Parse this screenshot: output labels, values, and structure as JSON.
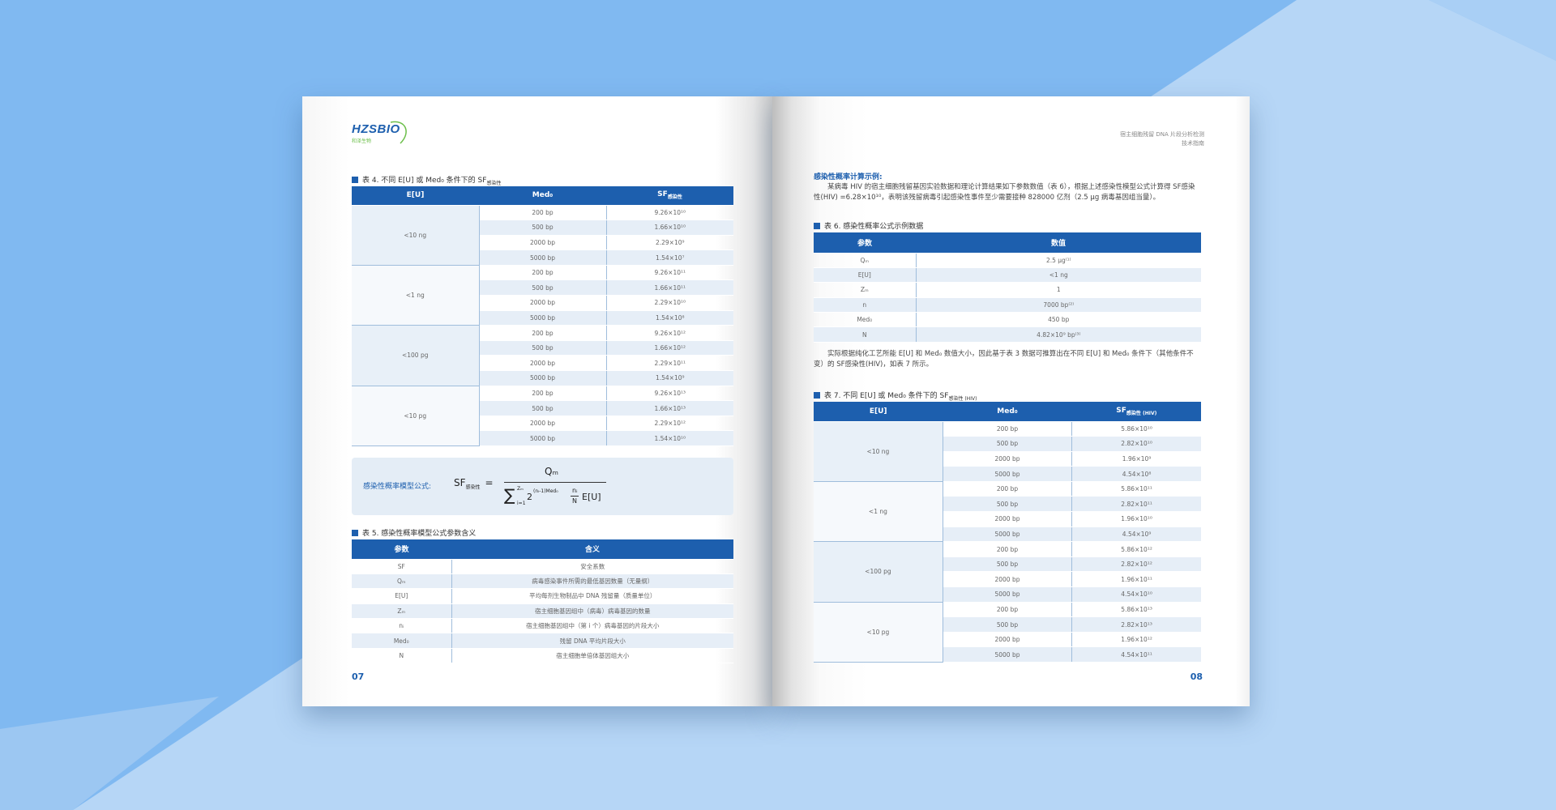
{
  "left_page": {
    "logo": {
      "text": "HZSBIO",
      "subtext": "和泽生物"
    },
    "table4": {
      "caption": "表 4. 不同 E[U] 或 Med₀ 条件下的 SF",
      "caption_sub": "感染性",
      "columns": [
        "E[U]",
        "Med₀",
        "SF"
      ],
      "column_sub": "感染性",
      "groups": [
        {
          "label": "<10 ng",
          "rows": [
            [
              "200 bp",
              "9.26×10¹⁰"
            ],
            [
              "500 bp",
              "1.66×10¹⁰"
            ],
            [
              "2000 bp",
              "2.29×10⁹"
            ],
            [
              "5000 bp",
              "1.54×10⁷"
            ]
          ]
        },
        {
          "label": "<1 ng",
          "rows": [
            [
              "200 bp",
              "9.26×10¹¹"
            ],
            [
              "500 bp",
              "1.66×10¹¹"
            ],
            [
              "2000 bp",
              "2.29×10¹⁰"
            ],
            [
              "5000 bp",
              "1.54×10⁸"
            ]
          ]
        },
        {
          "label": "<100 pg",
          "rows": [
            [
              "200 bp",
              "9.26×10¹²"
            ],
            [
              "500 bp",
              "1.66×10¹²"
            ],
            [
              "2000 bp",
              "2.29×10¹¹"
            ],
            [
              "5000 bp",
              "1.54×10⁹"
            ]
          ]
        },
        {
          "label": "<10 pg",
          "rows": [
            [
              "200 bp",
              "9.26×10¹³"
            ],
            [
              "500 bp",
              "1.66×10¹³"
            ],
            [
              "2000 bp",
              "2.29×10¹²"
            ],
            [
              "5000 bp",
              "1.54×10¹⁰"
            ]
          ]
        }
      ]
    },
    "formula": {
      "label": "感染性概率模型公式:",
      "lhs": "SF",
      "lhs_sub": "感染性",
      "eq": "=",
      "numerator": "Qₘ",
      "sum": "∑",
      "sum_upper": "Zₘ",
      "sum_lower": "i=1",
      "base": "2",
      "exponent": "(nᵢ-1)Med₀",
      "frac_num": "nᵢ",
      "frac_den": "N",
      "tail": "E[U]"
    },
    "table5": {
      "caption": "表 5. 感染性概率模型公式参数含义",
      "columns": [
        "参数",
        "含义"
      ],
      "rows": [
        [
          "SF",
          "安全系数"
        ],
        [
          "Qₘ",
          "病毒感染事件所需的最低基因数量（无量纲）"
        ],
        [
          "E[U]",
          "平均每剂生物制品中 DNA 残留量（质量单位）"
        ],
        [
          "Zₘ",
          "宿主细胞基因组中（病毒）病毒基因的数量"
        ],
        [
          "nᵢ",
          "宿主细胞基因组中（第 i 个）病毒基因的片段大小"
        ],
        [
          "Med₀",
          "残留 DNA 平均片段大小"
        ],
        [
          "N",
          "宿主细胞单倍体基因组大小"
        ]
      ]
    },
    "page_number": "07"
  },
  "right_page": {
    "header": {
      "title": "宿主细胞残留 DNA 片段分析检测",
      "subtitle": "技术指南"
    },
    "section_title": "感染性概率计算示例:",
    "paragraph1": "某病毒 HIV 的宿主细胞残留基因实验数据和理论计算结果如下参数数值（表 6），根据上述感染性模型公式计算得 SF感染性(HIV) =6.28×10¹⁰，表明该残留病毒引起感染性事件至少需要接种 828000 亿剂（2.5 μg 病毒基因组当量）。",
    "table6": {
      "caption": "表 6. 感染性概率公式示例数据",
      "columns": [
        "参数",
        "数值"
      ],
      "rows": [
        [
          "Qₘ",
          "2.5 μg⁽¹⁾"
        ],
        [
          "E[U]",
          "<1 ng"
        ],
        [
          "Zₘ",
          "1"
        ],
        [
          "n",
          "7000 bp⁽²⁾"
        ],
        [
          "Med₀",
          "450 bp"
        ],
        [
          "N",
          "4.82×10⁹ bp⁽³⁾"
        ]
      ]
    },
    "paragraph2": "实际根据纯化工艺所能 E[U] 和 Med₀ 数值大小，因此基于表 3 数据可推算出在不同 E[U] 和 Med₀ 条件下（其他条件不变）的 SF感染性(HIV)，如表 7 所示。",
    "table7": {
      "caption": "表 7. 不同 E[U] 或 Med₀ 条件下的 SF",
      "caption_sub": "感染性 (HIV)",
      "columns": [
        "E[U]",
        "Med₀",
        "SF"
      ],
      "column_sub": "感染性 (HIV)",
      "groups": [
        {
          "label": "<10 ng",
          "rows": [
            [
              "200 bp",
              "5.86×10¹⁰"
            ],
            [
              "500 bp",
              "2.82×10¹⁰"
            ],
            [
              "2000 bp",
              "1.96×10⁹"
            ],
            [
              "5000 bp",
              "4.54×10⁸"
            ]
          ]
        },
        {
          "label": "<1 ng",
          "rows": [
            [
              "200 bp",
              "5.86×10¹¹"
            ],
            [
              "500 bp",
              "2.82×10¹¹"
            ],
            [
              "2000 bp",
              "1.96×10¹⁰"
            ],
            [
              "5000 bp",
              "4.54×10⁹"
            ]
          ]
        },
        {
          "label": "<100 pg",
          "rows": [
            [
              "200 bp",
              "5.86×10¹²"
            ],
            [
              "500 bp",
              "2.82×10¹²"
            ],
            [
              "2000 bp",
              "1.96×10¹¹"
            ],
            [
              "5000 bp",
              "4.54×10¹⁰"
            ]
          ]
        },
        {
          "label": "<10 pg",
          "rows": [
            [
              "200 bp",
              "5.86×10¹³"
            ],
            [
              "500 bp",
              "2.82×10¹³"
            ],
            [
              "2000 bp",
              "1.96×10¹²"
            ],
            [
              "5000 bp",
              "4.54×10¹¹"
            ]
          ]
        }
      ]
    },
    "page_number": "08"
  }
}
